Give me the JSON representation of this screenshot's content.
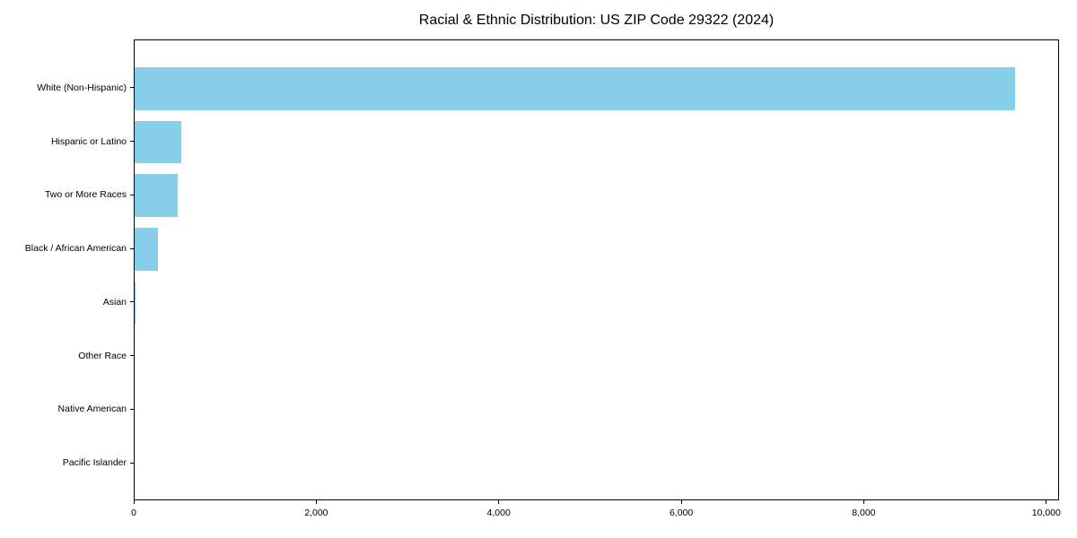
{
  "chart_data": {
    "type": "bar",
    "orientation": "horizontal",
    "title": "Racial & Ethnic Distribution: US ZIP Code 29322 (2024)",
    "xlabel": "",
    "ylabel": "",
    "categories": [
      "White (Non-Hispanic)",
      "Hispanic or Latino",
      "Two or More Races",
      "Black / African American",
      "Asian",
      "Other Race",
      "Native American",
      "Pacific Islander"
    ],
    "values": [
      9650,
      510,
      470,
      260,
      10,
      0,
      0,
      0
    ],
    "xlim": [
      0,
      10140
    ],
    "x_ticks": [
      0,
      2000,
      4000,
      6000,
      8000,
      10000
    ],
    "x_tick_labels": [
      "0",
      "2,000",
      "4,000",
      "6,000",
      "8,000",
      "10,000"
    ],
    "bar_color": "#87CEEB",
    "axis_color": "#000000",
    "text_color": "#000000",
    "background_color": "#ffffff",
    "grid": false,
    "legend": null,
    "categories_order": "largest value at top"
  }
}
